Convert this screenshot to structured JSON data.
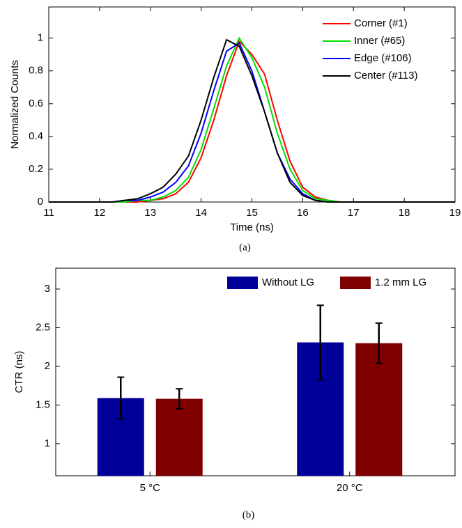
{
  "chart_data": [
    {
      "type": "line",
      "caption": "(a)",
      "xlabel": "Time (ns)",
      "ylabel": "Normalized Counts",
      "x": [
        11,
        11.25,
        11.5,
        11.75,
        12,
        12.25,
        12.5,
        12.75,
        13,
        13.25,
        13.5,
        13.75,
        14,
        14.25,
        14.5,
        14.75,
        15,
        15.25,
        15.5,
        15.75,
        16,
        16.25,
        16.5,
        16.75,
        17,
        17.25,
        17.5,
        17.75,
        18,
        18.25,
        18.5,
        18.75,
        19
      ],
      "series": [
        {
          "name": "Corner (#1)",
          "color": "#ff0000",
          "values": [
            0,
            0,
            0,
            0,
            0,
            0,
            0,
            0,
            0.01,
            0.02,
            0.05,
            0.12,
            0.27,
            0.5,
            0.77,
            0.98,
            0.9,
            0.78,
            0.5,
            0.25,
            0.09,
            0.03,
            0.01,
            0,
            0,
            0,
            0,
            0,
            0,
            0,
            0,
            0,
            0
          ]
        },
        {
          "name": "Inner (#65)",
          "color": "#00e000",
          "values": [
            0,
            0,
            0,
            0,
            0,
            0,
            0,
            0.01,
            0.01,
            0.03,
            0.07,
            0.15,
            0.32,
            0.57,
            0.83,
            1,
            0.88,
            0.7,
            0.42,
            0.2,
            0.07,
            0.02,
            0.01,
            0,
            0,
            0,
            0,
            0,
            0,
            0,
            0,
            0,
            0
          ]
        },
        {
          "name": "Edge (#106)",
          "color": "#0000ff",
          "values": [
            0,
            0,
            0,
            0,
            0,
            0,
            0.01,
            0.01,
            0.03,
            0.06,
            0.12,
            0.22,
            0.42,
            0.68,
            0.92,
            0.97,
            0.8,
            0.55,
            0.3,
            0.14,
            0.05,
            0.01,
            0,
            0,
            0,
            0,
            0,
            0,
            0,
            0,
            0,
            0,
            0
          ]
        },
        {
          "name": "Center (#113)",
          "color": "#000000",
          "values": [
            0,
            0,
            0,
            0,
            0,
            0,
            0.01,
            0.02,
            0.05,
            0.09,
            0.17,
            0.28,
            0.5,
            0.76,
            0.99,
            0.95,
            0.77,
            0.55,
            0.3,
            0.12,
            0.04,
            0.01,
            0,
            0,
            0,
            0,
            0,
            0,
            0,
            0,
            0,
            0,
            0
          ]
        }
      ],
      "xlim": [
        11,
        19
      ],
      "xticks": [
        11,
        12,
        13,
        14,
        15,
        16,
        17,
        18,
        19
      ],
      "ylim": [
        0,
        1.19
      ],
      "yticks": [
        0,
        0.2,
        0.4,
        0.6,
        0.8,
        1
      ],
      "legend": "upper right"
    },
    {
      "type": "bar",
      "caption": "(b)",
      "ylabel": "CTR (ns)",
      "categories": [
        "5 °C",
        "20 °C"
      ],
      "series": [
        {
          "name": "Without LG",
          "color": "#000099",
          "values": [
            1.59,
            2.31
          ],
          "errors": [
            0.27,
            0.48
          ]
        },
        {
          "name": "1.2 mm LG",
          "color": "#800000",
          "values": [
            1.58,
            2.3
          ],
          "errors": [
            0.13,
            0.26
          ]
        }
      ],
      "ylim": [
        0.585,
        3.27
      ],
      "yticks": [
        1,
        1.5,
        2,
        2.5,
        3
      ],
      "legend": "upper right"
    }
  ]
}
